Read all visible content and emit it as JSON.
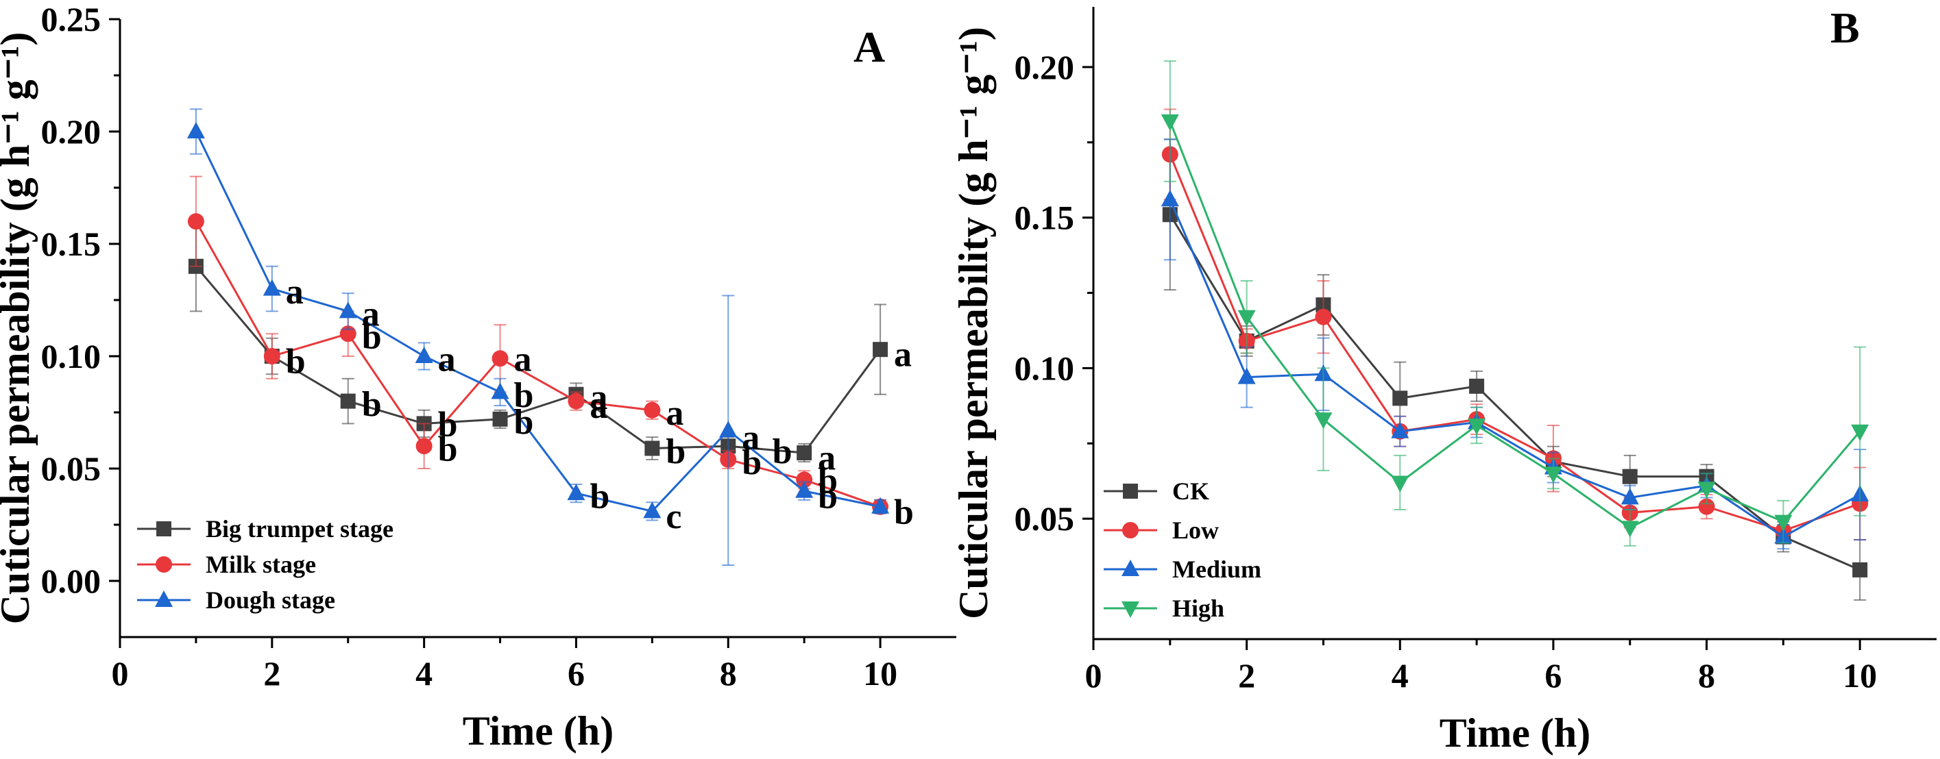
{
  "chart_data": [
    {
      "type": "line",
      "panel_label": "A",
      "xlabel": "Time (h)",
      "ylabel": "Cuticular permeability (g h⁻¹ g⁻¹)",
      "xlim": [
        0,
        11
      ],
      "ylim": [
        -0.025,
        0.25
      ],
      "xticks": [
        0,
        2,
        4,
        6,
        8,
        10
      ],
      "xtick_labels": [
        "0",
        "2",
        "4",
        "6",
        "8",
        "10"
      ],
      "yticks": [
        0.0,
        0.05,
        0.1,
        0.15,
        0.2,
        0.25
      ],
      "ytick_labels": [
        "0.00",
        "0.05",
        "0.10",
        "0.15",
        "0.20",
        "0.25"
      ],
      "legend_position": "bottom-left",
      "x": [
        1,
        2,
        3,
        4,
        5,
        6,
        7,
        8,
        9,
        10
      ],
      "series": [
        {
          "name": "Big trumpet stage",
          "color": "#404040",
          "marker": "square",
          "values": [
            0.14,
            0.1,
            0.08,
            0.07,
            0.072,
            0.083,
            0.059,
            0.06,
            0.057,
            0.103
          ],
          "errors": [
            0.02,
            0.008,
            0.01,
            0.006,
            0.004,
            0.005,
            0.005,
            0.004,
            0.004,
            0.02
          ]
        },
        {
          "name": "Milk stage",
          "color": "#e8383b",
          "marker": "circle",
          "values": [
            0.16,
            0.1,
            0.11,
            0.06,
            0.099,
            0.08,
            0.076,
            0.054,
            0.045,
            0.033
          ],
          "errors": [
            0.02,
            0.01,
            0.01,
            0.01,
            0.015,
            0.004,
            0.004,
            0.004,
            0.004,
            0.003
          ]
        },
        {
          "name": "Dough stage",
          "color": "#1e66d0",
          "marker": "triangle-up",
          "values": [
            0.2,
            0.13,
            0.12,
            0.1,
            0.084,
            0.039,
            0.031,
            0.067,
            0.04,
            0.033
          ],
          "errors": [
            0.01,
            0.01,
            0.008,
            0.006,
            0.006,
            0.004,
            0.004,
            0.06,
            0.004,
            0.003
          ]
        }
      ],
      "annotations": [
        {
          "text": "a",
          "x": 2.18,
          "y": 0.129
        },
        {
          "text": "b",
          "x": 2.18,
          "y": 0.098
        },
        {
          "text": "a",
          "x": 3.18,
          "y": 0.119
        },
        {
          "text": "b",
          "x": 3.18,
          "y": 0.109
        },
        {
          "text": "b",
          "x": 3.18,
          "y": 0.079
        },
        {
          "text": "a",
          "x": 4.18,
          "y": 0.099
        },
        {
          "text": "b",
          "x": 4.18,
          "y": 0.07
        },
        {
          "text": "b",
          "x": 4.18,
          "y": 0.059
        },
        {
          "text": "a",
          "x": 5.18,
          "y": 0.099
        },
        {
          "text": "b",
          "x": 5.18,
          "y": 0.083
        },
        {
          "text": "b",
          "x": 5.18,
          "y": 0.071
        },
        {
          "text": "a",
          "x": 6.18,
          "y": 0.082
        },
        {
          "text": "a",
          "x": 6.18,
          "y": 0.078
        },
        {
          "text": "b",
          "x": 6.18,
          "y": 0.038
        },
        {
          "text": "a",
          "x": 7.18,
          "y": 0.075
        },
        {
          "text": "b",
          "x": 7.18,
          "y": 0.058
        },
        {
          "text": "c",
          "x": 7.18,
          "y": 0.029
        },
        {
          "text": "a",
          "x": 8.18,
          "y": 0.064
        },
        {
          "text": "b",
          "x": 8.58,
          "y": 0.058
        },
        {
          "text": "b",
          "x": 8.18,
          "y": 0.053
        },
        {
          "text": "a",
          "x": 9.18,
          "y": 0.055
        },
        {
          "text": "b",
          "x": 9.18,
          "y": 0.045
        },
        {
          "text": "b",
          "x": 9.18,
          "y": 0.038
        },
        {
          "text": "a",
          "x": 10.18,
          "y": 0.101
        },
        {
          "text": "b",
          "x": 10.18,
          "y": 0.031
        }
      ]
    },
    {
      "type": "line",
      "panel_label": "B",
      "xlabel": "Time (h)",
      "ylabel": "Cuticular permeability (g h⁻¹ g⁻¹)",
      "xlim": [
        0,
        11
      ],
      "ylim": [
        0.01,
        0.22
      ],
      "xticks": [
        0,
        2,
        4,
        6,
        8,
        10
      ],
      "xtick_labels": [
        "0",
        "2",
        "4",
        "6",
        "8",
        "10"
      ],
      "yticks": [
        0.05,
        0.1,
        0.15,
        0.2
      ],
      "ytick_labels": [
        "0.05",
        "0.10",
        "0.15",
        "0.20"
      ],
      "legend_position": "bottom-left",
      "x": [
        1,
        2,
        3,
        4,
        5,
        6,
        7,
        8,
        9,
        10
      ],
      "series": [
        {
          "name": "CK",
          "color": "#404040",
          "marker": "square",
          "values": [
            0.151,
            0.109,
            0.121,
            0.09,
            0.094,
            0.069,
            0.064,
            0.064,
            0.044,
            0.033
          ],
          "errors": [
            0.025,
            0.005,
            0.01,
            0.012,
            0.005,
            0.005,
            0.007,
            0.004,
            0.005,
            0.01
          ]
        },
        {
          "name": "Low",
          "color": "#e8383b",
          "marker": "circle",
          "values": [
            0.171,
            0.109,
            0.117,
            0.079,
            0.083,
            0.07,
            0.052,
            0.054,
            0.046,
            0.055
          ],
          "errors": [
            0.015,
            0.004,
            0.012,
            0.005,
            0.005,
            0.011,
            0.005,
            0.004,
            0.004,
            0.012
          ]
        },
        {
          "name": "Medium",
          "color": "#1e66d0",
          "marker": "triangle-up",
          "values": [
            0.156,
            0.097,
            0.098,
            0.079,
            0.082,
            0.067,
            0.057,
            0.061,
            0.044,
            0.058
          ],
          "errors": [
            0.02,
            0.01,
            0.012,
            0.005,
            0.005,
            0.005,
            0.004,
            0.004,
            0.004,
            0.015
          ]
        },
        {
          "name": "High",
          "color": "#2db36b",
          "marker": "triangle-down",
          "values": [
            0.182,
            0.117,
            0.083,
            0.062,
            0.081,
            0.065,
            0.047,
            0.06,
            0.049,
            0.079
          ],
          "errors": [
            0.02,
            0.012,
            0.017,
            0.009,
            0.006,
            0.005,
            0.006,
            0.005,
            0.007,
            0.028
          ]
        }
      ],
      "annotations": []
    }
  ]
}
